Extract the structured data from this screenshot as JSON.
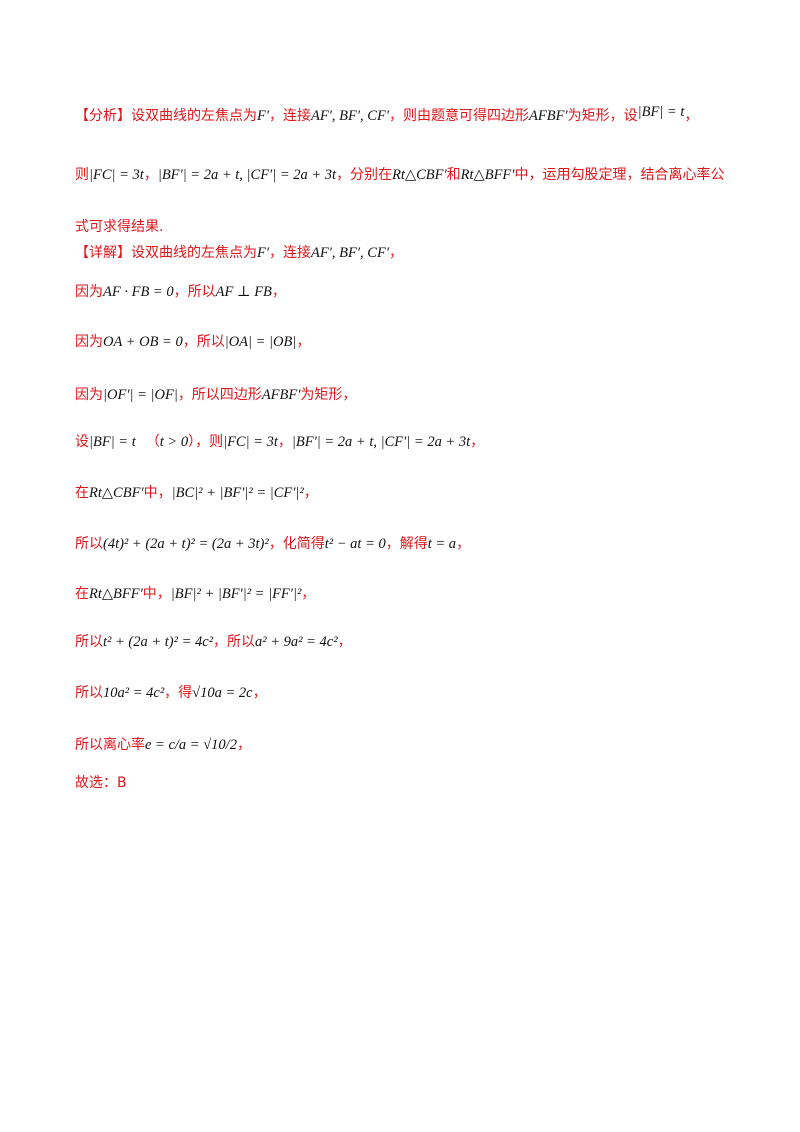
{
  "analysis": {
    "label": "【分析】",
    "l1_a": "设双曲线的左焦点为",
    "l1_m1": "F′",
    "l1_b": "，连接",
    "l1_m2": "AF′, BF′, CF′",
    "l1_c": "，则由题意可得四边形",
    "l1_m3": "AFBF′",
    "l1_d": "为矩形，设",
    "l1_m4": "|BF| = t",
    "l1_e": "，",
    "l2_a": "则",
    "l2_m1": "|FC| = 3t",
    "l2_b": "，",
    "l2_m2": "|BF′| = 2a + t, |CF′| = 2a + 3t",
    "l2_c": "，分别在",
    "l2_m3": "Rt△CBF′",
    "l2_d": "和",
    "l2_m4": "Rt△BFF′",
    "l2_e": "中，运用勾股定理，结合离心率公",
    "l3": "式可求得结果."
  },
  "detail": {
    "label": "【详解】",
    "l1_a": "设双曲线的左焦点为",
    "l1_m1": "F′",
    "l1_b": "，连接",
    "l1_m2": "AF′, BF′, CF′",
    "l1_c": "，",
    "l2_a": "因为",
    "l2_m1": "AF · FB = 0",
    "l2_b": "，所以",
    "l2_m2": "AF ⊥ FB",
    "l2_c": "，",
    "l3_a": "因为",
    "l3_m1": "OA + OB = 0",
    "l3_b": "，所以",
    "l3_m2": "|OA| = |OB|",
    "l3_c": "，",
    "l4_a": "因为",
    "l4_m1": "|OF′| = |OF|",
    "l4_b": "，所以四边形",
    "l4_m2": "AFBF′",
    "l4_c": "为矩形，",
    "l5_a": "设",
    "l5_m1": "|BF| = t",
    "l5_b": "（",
    "l5_m2": "t > 0",
    "l5_c": "），则",
    "l5_m3": "|FC| = 3t",
    "l5_d": "，",
    "l5_m4": "|BF′| = 2a + t, |CF′| = 2a + 3t",
    "l5_e": "，",
    "l6_a": "在",
    "l6_m1": "Rt△CBF′",
    "l6_b": "中，",
    "l6_m2": "|BC|² + |BF′|² = |CF′|²",
    "l6_c": "，",
    "l7_a": "所以",
    "l7_m1": "(4t)² + (2a + t)² = (2a + 3t)²",
    "l7_b": "，化简得",
    "l7_m2": "t² − at = 0",
    "l7_c": "，解得",
    "l7_m3": "t = a",
    "l7_d": "，",
    "l8_a": "在",
    "l8_m1": "Rt△BFF′",
    "l8_b": "中，",
    "l8_m2": "|BF|² + |BF′|² = |FF′|²",
    "l8_c": "，",
    "l9_a": "所以",
    "l9_m1": "t² + (2a + t)² = 4c²",
    "l9_b": "，所以",
    "l9_m2": "a² + 9a² = 4c²",
    "l9_c": "，",
    "l10_a": "所以",
    "l10_m1": "10a² = 4c²",
    "l10_b": "，得",
    "l10_m2": "√10a = 2c",
    "l10_c": "，",
    "l11_a": "所以离心率",
    "l11_m1": "e = c/a = √10/2",
    "l11_b": "，",
    "l12": "故选：B"
  }
}
